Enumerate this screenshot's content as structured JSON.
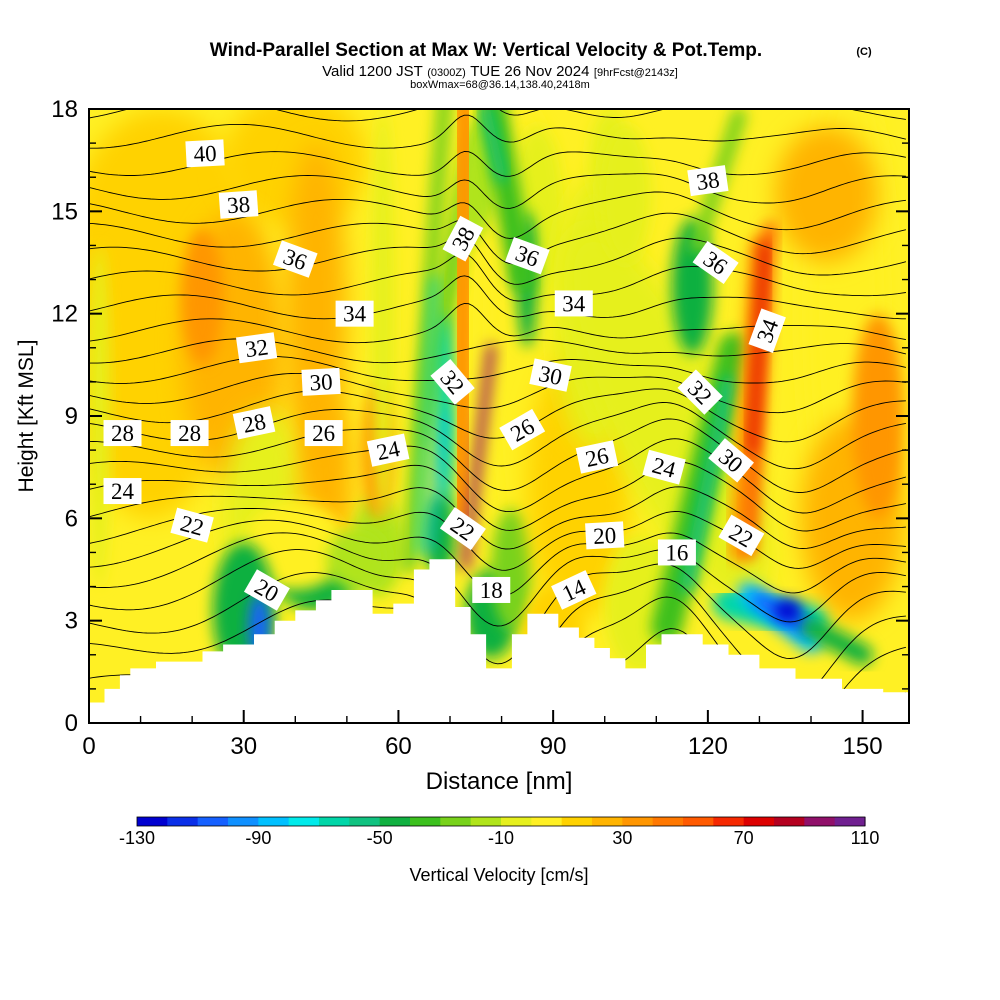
{
  "chart_data": {
    "type": "heatmap",
    "title": "Wind-Parallel Section at Max W: Vertical Velocity & Pot.Temp.",
    "title_mark": "(C)",
    "subtitle_parts": [
      "Valid 1200 JST",
      "(0300Z)",
      "TUE 26 Nov 2024",
      "[9hrFcst@2143z]"
    ],
    "subtitle2": "boxWmax=68@36.14,138.40,2418m",
    "xlabel": "Distance [nm]",
    "ylabel": "Height [Kft MSL]",
    "xlim": [
      0,
      159
    ],
    "ylim": [
      0,
      18
    ],
    "xticks": [
      0,
      30,
      60,
      90,
      120,
      150
    ],
    "yticks": [
      0,
      3,
      6,
      9,
      12,
      15,
      18
    ],
    "grid": false,
    "colorbar": {
      "label": "Vertical Velocity [cm/s]",
      "min": -130,
      "max": 110,
      "step": 10,
      "ticks": [
        -130,
        -90,
        -50,
        -10,
        30,
        70,
        110
      ],
      "colors": [
        "#0000d0",
        "#0a2fe8",
        "#1560ff",
        "#0f90ff",
        "#00c0ff",
        "#00eaea",
        "#00d6a8",
        "#10c280",
        "#10b040",
        "#3cc01e",
        "#78d21a",
        "#b0e41a",
        "#e6f01e",
        "#fff024",
        "#ffd200",
        "#ffb400",
        "#ff9600",
        "#ff7800",
        "#ff5a00",
        "#f52800",
        "#dc0000",
        "#b40020",
        "#90106a",
        "#702090"
      ]
    },
    "terrain_kft": [
      [
        0,
        0.2
      ],
      [
        0,
        0.6
      ],
      [
        3,
        0.6
      ],
      [
        3,
        1.0
      ],
      [
        6,
        1.0
      ],
      [
        6,
        1.4
      ],
      [
        8,
        1.4
      ],
      [
        8,
        1.6
      ],
      [
        13,
        1.6
      ],
      [
        13,
        1.8
      ],
      [
        22,
        1.8
      ],
      [
        22,
        2.1
      ],
      [
        26,
        2.1
      ],
      [
        26,
        2.3
      ],
      [
        32,
        2.3
      ],
      [
        32,
        2.6
      ],
      [
        36,
        2.6
      ],
      [
        36,
        3.0
      ],
      [
        40,
        3.0
      ],
      [
        40,
        3.3
      ],
      [
        44,
        3.3
      ],
      [
        44,
        3.6
      ],
      [
        47,
        3.6
      ],
      [
        47,
        3.9
      ],
      [
        55,
        3.9
      ],
      [
        55,
        3.2
      ],
      [
        59,
        3.2
      ],
      [
        59,
        3.5
      ],
      [
        63,
        3.5
      ],
      [
        63,
        4.5
      ],
      [
        66,
        4.5
      ],
      [
        66,
        4.8
      ],
      [
        71,
        4.8
      ],
      [
        71,
        3.4
      ],
      [
        74,
        3.4
      ],
      [
        74,
        2.6
      ],
      [
        77,
        2.6
      ],
      [
        77,
        1.6
      ],
      [
        82,
        1.6
      ],
      [
        82,
        2.6
      ],
      [
        85,
        2.6
      ],
      [
        85,
        3.2
      ],
      [
        91,
        3.2
      ],
      [
        91,
        2.8
      ],
      [
        95,
        2.8
      ],
      [
        95,
        2.5
      ],
      [
        98,
        2.5
      ],
      [
        98,
        2.2
      ],
      [
        101,
        2.2
      ],
      [
        101,
        1.9
      ],
      [
        104,
        1.9
      ],
      [
        104,
        1.6
      ],
      [
        108,
        1.6
      ],
      [
        108,
        2.3
      ],
      [
        111,
        2.3
      ],
      [
        111,
        2.6
      ],
      [
        119,
        2.6
      ],
      [
        119,
        2.3
      ],
      [
        124,
        2.3
      ],
      [
        124,
        2.0
      ],
      [
        130,
        2.0
      ],
      [
        130,
        1.6
      ],
      [
        137,
        1.6
      ],
      [
        137,
        1.3
      ],
      [
        146,
        1.3
      ],
      [
        146,
        1.0
      ],
      [
        154,
        1.0
      ],
      [
        154,
        0.9
      ],
      [
        159,
        0.9
      ],
      [
        159,
        0
      ]
    ],
    "contour_labels": [
      {
        "text": "40",
        "x": 22.5,
        "y": 16.7,
        "angle": -3
      },
      {
        "text": "38",
        "x": 29,
        "y": 15.2,
        "angle": -4
      },
      {
        "text": "36",
        "x": 40,
        "y": 13.6,
        "angle": 20
      },
      {
        "text": "34",
        "x": 51.5,
        "y": 12.0,
        "angle": 0
      },
      {
        "text": "32",
        "x": 32.5,
        "y": 11.0,
        "angle": -8
      },
      {
        "text": "30",
        "x": 45,
        "y": 10.0,
        "angle": -3
      },
      {
        "text": "28",
        "x": 6.5,
        "y": 8.5,
        "angle": 0
      },
      {
        "text": "28",
        "x": 19.5,
        "y": 8.5,
        "angle": 0
      },
      {
        "text": "28",
        "x": 32,
        "y": 8.8,
        "angle": -12
      },
      {
        "text": "26",
        "x": 45.5,
        "y": 8.5,
        "angle": 0
      },
      {
        "text": "24",
        "x": 58,
        "y": 8.0,
        "angle": -12
      },
      {
        "text": "24",
        "x": 6.5,
        "y": 6.8,
        "angle": 0
      },
      {
        "text": "22",
        "x": 20,
        "y": 5.8,
        "angle": 15
      },
      {
        "text": "20",
        "x": 34.5,
        "y": 3.9,
        "angle": 30
      },
      {
        "text": "38",
        "x": 72.5,
        "y": 14.2,
        "angle": -62
      },
      {
        "text": "36",
        "x": 85,
        "y": 13.7,
        "angle": 20
      },
      {
        "text": "34",
        "x": 94,
        "y": 12.3,
        "angle": 0
      },
      {
        "text": "32",
        "x": 70.5,
        "y": 10.0,
        "angle": 50
      },
      {
        "text": "30",
        "x": 89.5,
        "y": 10.2,
        "angle": 12
      },
      {
        "text": "26",
        "x": 84,
        "y": 8.6,
        "angle": -30
      },
      {
        "text": "22",
        "x": 72.5,
        "y": 5.7,
        "angle": 35
      },
      {
        "text": "18",
        "x": 78,
        "y": 3.9,
        "angle": 0
      },
      {
        "text": "26",
        "x": 98.5,
        "y": 7.8,
        "angle": -12
      },
      {
        "text": "24",
        "x": 111.5,
        "y": 7.5,
        "angle": 15
      },
      {
        "text": "20",
        "x": 100,
        "y": 5.5,
        "angle": -3
      },
      {
        "text": "16",
        "x": 114,
        "y": 5.0,
        "angle": 0
      },
      {
        "text": "14",
        "x": 94,
        "y": 3.9,
        "angle": -25
      },
      {
        "text": "38",
        "x": 120,
        "y": 15.9,
        "angle": -8
      },
      {
        "text": "36",
        "x": 121.5,
        "y": 13.5,
        "angle": 35
      },
      {
        "text": "34",
        "x": 131.5,
        "y": 11.5,
        "angle": -70
      },
      {
        "text": "32",
        "x": 118.5,
        "y": 9.7,
        "angle": 45
      },
      {
        "text": "30",
        "x": 124.5,
        "y": 7.7,
        "angle": 40
      },
      {
        "text": "22",
        "x": 126.5,
        "y": 5.5,
        "angle": 30
      }
    ]
  }
}
